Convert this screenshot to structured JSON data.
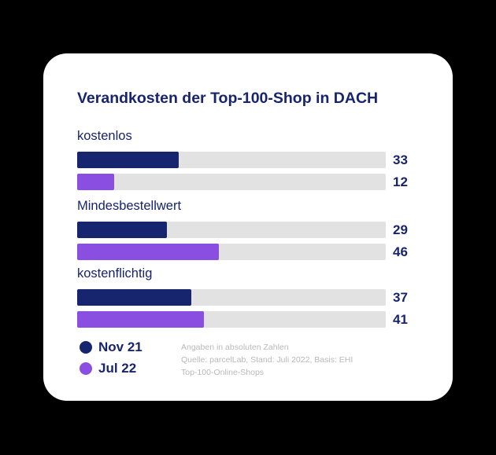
{
  "colors": {
    "nov21": "#17246e",
    "jul22": "#8a4fe0",
    "track": "#e2e2e2"
  },
  "chart_data": {
    "type": "bar",
    "orientation": "horizontal",
    "title": "Verandkosten der Top-100-Shop in DACH",
    "categories": [
      "kostenlos",
      "Mindesbestellwert",
      "kostenflichtig"
    ],
    "series": [
      {
        "name": "Nov 21",
        "values": [
          33,
          29,
          37
        ]
      },
      {
        "name": "Jul 22",
        "values": [
          12,
          46,
          41
        ]
      }
    ],
    "xlim": [
      0,
      100
    ],
    "grid": false,
    "legend_position": "bottom-left"
  },
  "note_lines": [
    "Angaben in absoluten Zahlen",
    "Quelle: parcelLab, Stand: Juli 2022, Basis: EHI",
    "Top-100-Online-Shops"
  ]
}
